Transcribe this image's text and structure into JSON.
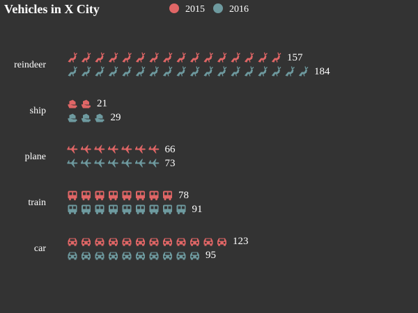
{
  "chart_data": {
    "type": "pictorial-bar",
    "title": "Vehicles in X City",
    "categories": [
      "reindeer",
      "ship",
      "plane",
      "train",
      "car"
    ],
    "icons": [
      "reindeer-icon",
      "ship-icon",
      "plane-icon",
      "train-icon",
      "car-icon"
    ],
    "series": [
      {
        "name": "2015",
        "color": "#e06666",
        "values": [
          157,
          21,
          66,
          78,
          123
        ]
      },
      {
        "name": "2016",
        "color": "#6e9a9f",
        "values": [
          184,
          29,
          73,
          91,
          95
        ]
      }
    ],
    "units_per_icon": 10,
    "legend_position": "top-center"
  }
}
